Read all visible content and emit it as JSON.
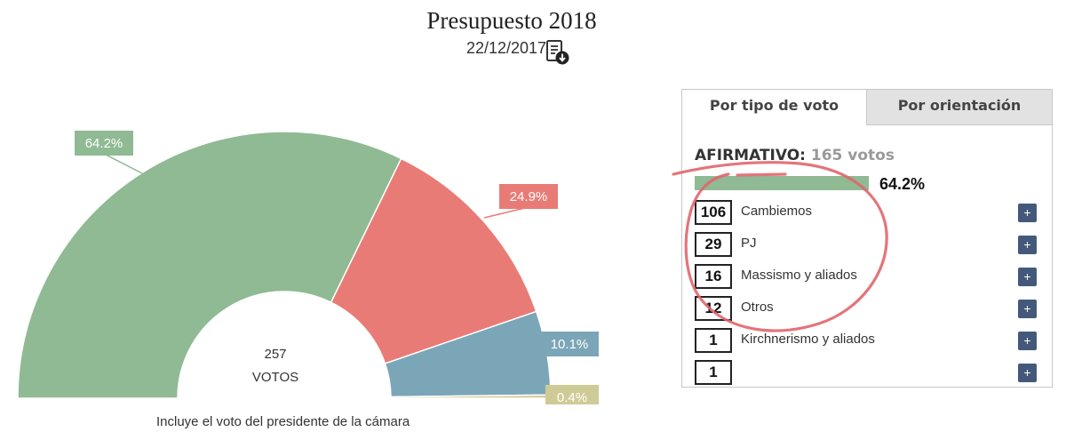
{
  "header": {
    "title": "Presupuesto 2018",
    "date": "22/12/2017",
    "download_icon": "document-download-icon"
  },
  "chart_data": {
    "type": "pie",
    "subtype": "semi-donut",
    "center_value": "257",
    "center_label": "VOTOS",
    "slices": [
      {
        "label": "64.2%",
        "value": 64.2,
        "color": "#8fba93"
      },
      {
        "label": "24.9%",
        "value": 24.9,
        "color": "#e97b76"
      },
      {
        "label": "10.1%",
        "value": 10.1,
        "color": "#7ba6b7"
      },
      {
        "label": "0.4%",
        "value": 0.4,
        "color": "#cfcb96"
      }
    ],
    "footnote": "Incluye el voto del presidente de la cámara"
  },
  "panel": {
    "tabs": [
      "Por tipo de voto",
      "Por orientación"
    ],
    "active_tab": 0,
    "category": "AFIRMATIVO:",
    "category_votes": "165 votos",
    "category_pct": "64.2%",
    "category_fill": 0.642,
    "category_color": "#8fba93",
    "parties": [
      {
        "count": "106",
        "name": "Cambiemos"
      },
      {
        "count": "29",
        "name": "PJ"
      },
      {
        "count": "16",
        "name": "Massismo y aliados"
      },
      {
        "count": "12",
        "name": "Otros"
      },
      {
        "count": "1",
        "name": "Kirchnerismo y aliados"
      },
      {
        "count": "1",
        "name": ""
      }
    ],
    "plus_label": "+"
  },
  "annotation_color": "#e0666b"
}
